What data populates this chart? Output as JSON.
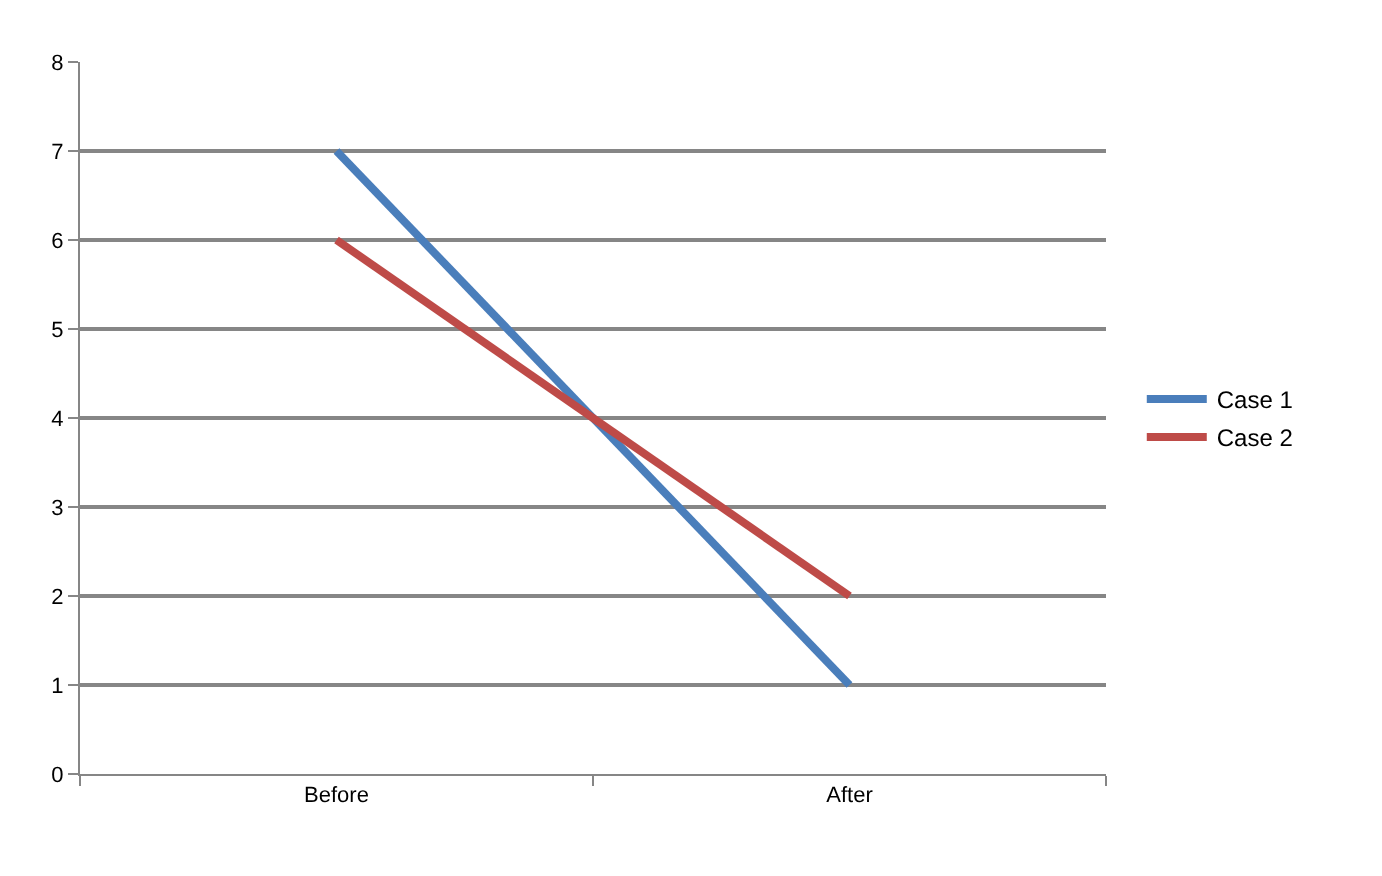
{
  "chart_data": {
    "type": "line",
    "categories": [
      "Before",
      "After"
    ],
    "series": [
      {
        "name": "Case 1",
        "color": "#4a7ebb",
        "values": [
          7,
          1
        ]
      },
      {
        "name": "Case 2",
        "color": "#be4b48",
        "values": [
          6,
          2
        ]
      }
    ],
    "ylim": [
      0,
      8
    ],
    "yticks": [
      0,
      1,
      2,
      3,
      4,
      5,
      6,
      7,
      8
    ],
    "grid": "y",
    "legend": "right",
    "marker": "none",
    "line_style": "solid"
  }
}
